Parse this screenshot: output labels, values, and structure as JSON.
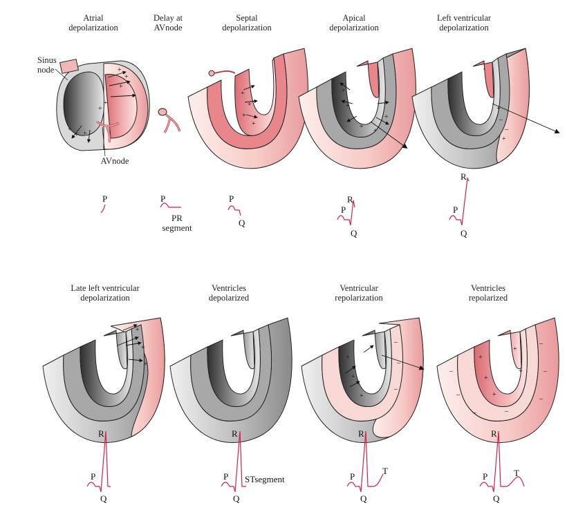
{
  "colors": {
    "ecg": "#d81e45",
    "gray_dark": "#4a4a4a",
    "gray_mid": "#a6a6a6",
    "gray_light": "#dcdcdc",
    "pink_dark": "#e47f86",
    "pink_mid": "#f2b6b5",
    "pink_light": "#fbe4e1"
  },
  "stages": [
    {
      "title": [
        "Atrial",
        "depolarization"
      ]
    },
    {
      "title": [
        "Delay at",
        "AVnode"
      ]
    },
    {
      "title": [
        "Septal",
        "depolarization"
      ]
    },
    {
      "title": [
        "Apical",
        "depolarization"
      ]
    },
    {
      "title": [
        "Left ventricular",
        "depolarization"
      ]
    },
    {
      "title": [
        "Late left ventricular",
        "depolarization"
      ]
    },
    {
      "title": [
        "Ventricles",
        "depolarized"
      ]
    },
    {
      "title": [
        "Ventricular",
        "repolarization"
      ]
    },
    {
      "title": [
        "Ventricles",
        "repolarized"
      ]
    }
  ],
  "annotations": {
    "sinus_node": [
      "Sinus",
      "node"
    ],
    "av_node": "AVnode",
    "pr_segment": [
      "PR",
      "segment"
    ],
    "st_segment": "STsegment"
  },
  "waves": {
    "p": "P",
    "q": "Q",
    "r": "R",
    "t": "T"
  },
  "charges": {
    "plus": "+",
    "minus": "–"
  }
}
